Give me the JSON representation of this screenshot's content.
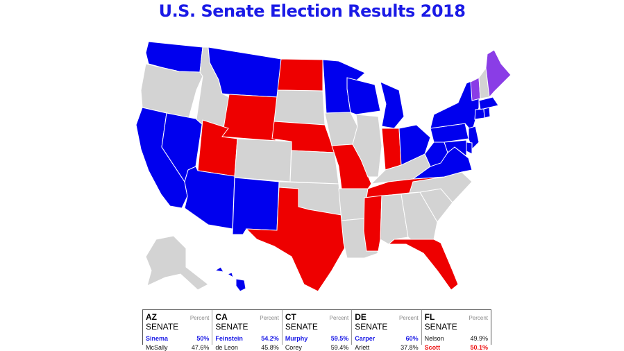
{
  "title": "U.S. Senate Election Results 2018",
  "colors": {
    "democrat": "#0000ee",
    "republican": "#ee0000",
    "independent": "#8a3de6",
    "no_race": "#d3d3d3",
    "border": "#ffffff"
  },
  "map": {
    "states": [
      {
        "name": "Washington",
        "result": "democrat"
      },
      {
        "name": "Oregon",
        "result": "no_race"
      },
      {
        "name": "California",
        "result": "democrat"
      },
      {
        "name": "Nevada",
        "result": "democrat"
      },
      {
        "name": "Idaho",
        "result": "no_race"
      },
      {
        "name": "Montana",
        "result": "democrat"
      },
      {
        "name": "Wyoming",
        "result": "republican"
      },
      {
        "name": "Utah",
        "result": "republican"
      },
      {
        "name": "Arizona",
        "result": "democrat"
      },
      {
        "name": "Colorado",
        "result": "no_race"
      },
      {
        "name": "New Mexico",
        "result": "democrat"
      },
      {
        "name": "North Dakota",
        "result": "republican"
      },
      {
        "name": "South Dakota",
        "result": "no_race"
      },
      {
        "name": "Nebraska",
        "result": "republican"
      },
      {
        "name": "Kansas",
        "result": "no_race"
      },
      {
        "name": "Oklahoma",
        "result": "no_race"
      },
      {
        "name": "Texas",
        "result": "republican"
      },
      {
        "name": "Minnesota",
        "result": "democrat"
      },
      {
        "name": "Iowa",
        "result": "no_race"
      },
      {
        "name": "Missouri",
        "result": "republican"
      },
      {
        "name": "Arkansas",
        "result": "no_race"
      },
      {
        "name": "Louisiana",
        "result": "no_race"
      },
      {
        "name": "Wisconsin",
        "result": "democrat"
      },
      {
        "name": "Illinois",
        "result": "no_race"
      },
      {
        "name": "Michigan",
        "result": "democrat"
      },
      {
        "name": "Indiana",
        "result": "republican"
      },
      {
        "name": "Ohio",
        "result": "democrat"
      },
      {
        "name": "Kentucky",
        "result": "no_race"
      },
      {
        "name": "Tennessee",
        "result": "republican"
      },
      {
        "name": "Mississippi",
        "result": "republican"
      },
      {
        "name": "Alabama",
        "result": "no_race"
      },
      {
        "name": "Georgia",
        "result": "no_race"
      },
      {
        "name": "Florida",
        "result": "republican"
      },
      {
        "name": "South Carolina",
        "result": "no_race"
      },
      {
        "name": "North Carolina",
        "result": "no_race"
      },
      {
        "name": "Virginia",
        "result": "democrat"
      },
      {
        "name": "West Virginia",
        "result": "democrat"
      },
      {
        "name": "Pennsylvania",
        "result": "democrat"
      },
      {
        "name": "New York",
        "result": "democrat"
      },
      {
        "name": "Vermont",
        "result": "independent"
      },
      {
        "name": "New Hampshire",
        "result": "no_race"
      },
      {
        "name": "Maine",
        "result": "independent"
      },
      {
        "name": "Massachusetts",
        "result": "democrat"
      },
      {
        "name": "Connecticut",
        "result": "democrat"
      },
      {
        "name": "Rhode Island",
        "result": "democrat"
      },
      {
        "name": "New Jersey",
        "result": "democrat"
      },
      {
        "name": "Delaware",
        "result": "democrat"
      },
      {
        "name": "Maryland",
        "result": "democrat"
      },
      {
        "name": "Alaska",
        "result": "no_race"
      },
      {
        "name": "Hawaii",
        "result": "democrat"
      }
    ]
  },
  "races": [
    {
      "state": "AZ",
      "label": "SENATE",
      "pct_header": "Percent",
      "candidates": [
        {
          "name": "Sinema",
          "pct": "50%",
          "winner": true,
          "party": "blue"
        },
        {
          "name": "McSally",
          "pct": "47.6%",
          "winner": false,
          "party": "red"
        }
      ]
    },
    {
      "state": "CA",
      "label": "SENATE",
      "pct_header": "Percent",
      "candidates": [
        {
          "name": "Feinstein",
          "pct": "54.2%",
          "winner": true,
          "party": "blue"
        },
        {
          "name": "de Leon",
          "pct": "45.8%",
          "winner": false,
          "party": "blue"
        }
      ]
    },
    {
      "state": "CT",
      "label": "SENATE",
      "pct_header": "Percent",
      "candidates": [
        {
          "name": "Murphy",
          "pct": "59.5%",
          "winner": true,
          "party": "blue"
        },
        {
          "name": "Corey",
          "pct": "59.4%",
          "winner": false,
          "party": "red"
        }
      ]
    },
    {
      "state": "DE",
      "label": "SENATE",
      "pct_header": "Percent",
      "candidates": [
        {
          "name": "Carper",
          "pct": "60%",
          "winner": true,
          "party": "blue"
        },
        {
          "name": "Arlett",
          "pct": "37.8%",
          "winner": false,
          "party": "red"
        }
      ]
    },
    {
      "state": "FL",
      "label": "SENATE",
      "pct_header": "Percent",
      "candidates": [
        {
          "name": "Nelson",
          "pct": "49.9%",
          "winner": false,
          "party": "blue"
        },
        {
          "name": "Scott",
          "pct": "50.1%",
          "winner": true,
          "party": "red"
        }
      ]
    }
  ]
}
